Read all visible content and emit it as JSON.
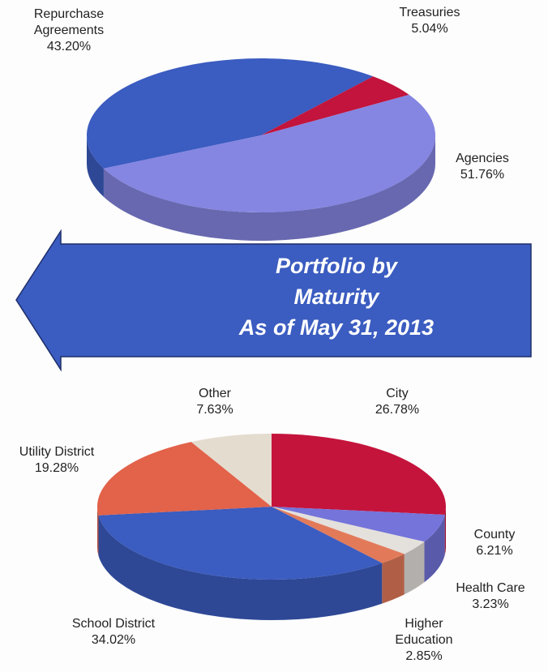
{
  "banner": {
    "lines": [
      "Portfolio by",
      "Maturity",
      "As of May 31, 2013"
    ]
  },
  "chart_data": [
    {
      "type": "pie",
      "categories": [
        "Repurchase Agreements",
        "Treasuries",
        "Agencies"
      ],
      "values": [
        43.2,
        5.04,
        51.76
      ],
      "value_labels": [
        "43.20%",
        "5.04%",
        "51.76%"
      ],
      "colors": [
        "#3b5cc0",
        "#c2143c",
        "#8585e2"
      ]
    },
    {
      "type": "pie",
      "categories": [
        "City",
        "County",
        "Health Care",
        "Higher Education",
        "School District",
        "Utility District",
        "Other"
      ],
      "values": [
        26.78,
        6.21,
        3.23,
        2.85,
        34.02,
        19.28,
        7.63
      ],
      "value_labels": [
        "26.78%",
        "6.21%",
        "3.23%",
        "2.85%",
        "34.02%",
        "19.28%",
        "7.63%"
      ],
      "colors": [
        "#c4143c",
        "#7474da",
        "#e4e0dc",
        "#e27a5a",
        "#3b5cc0",
        "#e2624a",
        "#e4dccf"
      ]
    }
  ]
}
